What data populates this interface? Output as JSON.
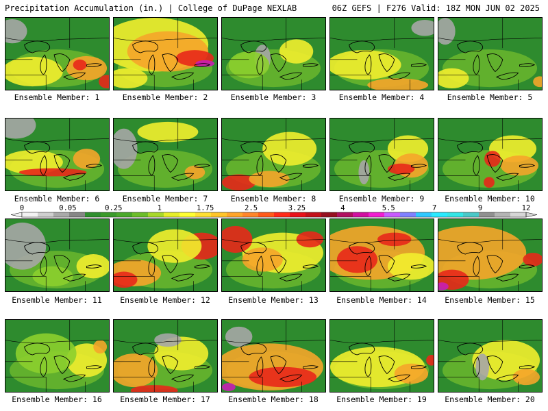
{
  "header": {
    "left_title": "Precipitation Accumulation (in.) | College of DuPage NEXLAB",
    "right_title": "06Z GEFS | F276 Valid: 18Z MON JUN 02 2025"
  },
  "panel_label_prefix": "Ensemble Member: ",
  "panels": [
    {
      "member": 1,
      "label": "Ensemble Member: 1"
    },
    {
      "member": 2,
      "label": "Ensemble Member: 2"
    },
    {
      "member": 3,
      "label": "Ensemble Member: 3"
    },
    {
      "member": 4,
      "label": "Ensemble Member: 4"
    },
    {
      "member": 5,
      "label": "Ensemble Member: 5"
    },
    {
      "member": 6,
      "label": "Ensemble Member: 6"
    },
    {
      "member": 7,
      "label": "Ensemble Member: 7"
    },
    {
      "member": 8,
      "label": "Ensemble Member: 8"
    },
    {
      "member": 9,
      "label": "Ensemble Member: 9"
    },
    {
      "member": 10,
      "label": "Ensemble Member: 10"
    },
    {
      "member": 11,
      "label": "Ensemble Member: 11"
    },
    {
      "member": 12,
      "label": "Ensemble Member: 12"
    },
    {
      "member": 13,
      "label": "Ensemble Member: 13"
    },
    {
      "member": 14,
      "label": "Ensemble Member: 14"
    },
    {
      "member": 15,
      "label": "Ensemble Member: 15"
    },
    {
      "member": 16,
      "label": "Ensemble Member: 16"
    },
    {
      "member": 17,
      "label": "Ensemble Member: 17"
    },
    {
      "member": 18,
      "label": "Ensemble Member: 18"
    },
    {
      "member": 19,
      "label": "Ensemble Member: 19"
    },
    {
      "member": 20,
      "label": "Ensemble Member: 20"
    }
  ],
  "colorbar": {
    "tick_labels": [
      "0",
      "0.05",
      "0.25",
      "1",
      "1.75",
      "2.5",
      "3.25",
      "4",
      "5.5",
      "7",
      "9",
      "12"
    ],
    "colors": [
      "#f2f2f2",
      "#cfcfcf",
      "#a9a9a9",
      "#868686",
      "#2f8f2f",
      "#3a9a2a",
      "#4aa82a",
      "#6cbd2a",
      "#a8d82a",
      "#e6ee2a",
      "#ffff33",
      "#ffe033",
      "#ffc52a",
      "#ffa52a",
      "#ff852a",
      "#ff5a1a",
      "#ff2a1a",
      "#e8101a",
      "#c2101a",
      "#951020",
      "#b01060",
      "#d010a0",
      "#f01ed0",
      "#c85aff",
      "#8080ff",
      "#30c8ff",
      "#2aeaff",
      "#33e6e6",
      "#4ac8c8",
      "#909090",
      "#b4b4b4",
      "#d6d6d6"
    ]
  },
  "map_colors": {
    "green": "#2e8b2e",
    "yellow_green": "#8ccf2e",
    "yellow": "#f2ee2e",
    "orange": "#f5a52a",
    "red": "#e8281a",
    "gray": "#a6a6a6",
    "magenta": "#c81eb4",
    "outline": "#000000"
  }
}
